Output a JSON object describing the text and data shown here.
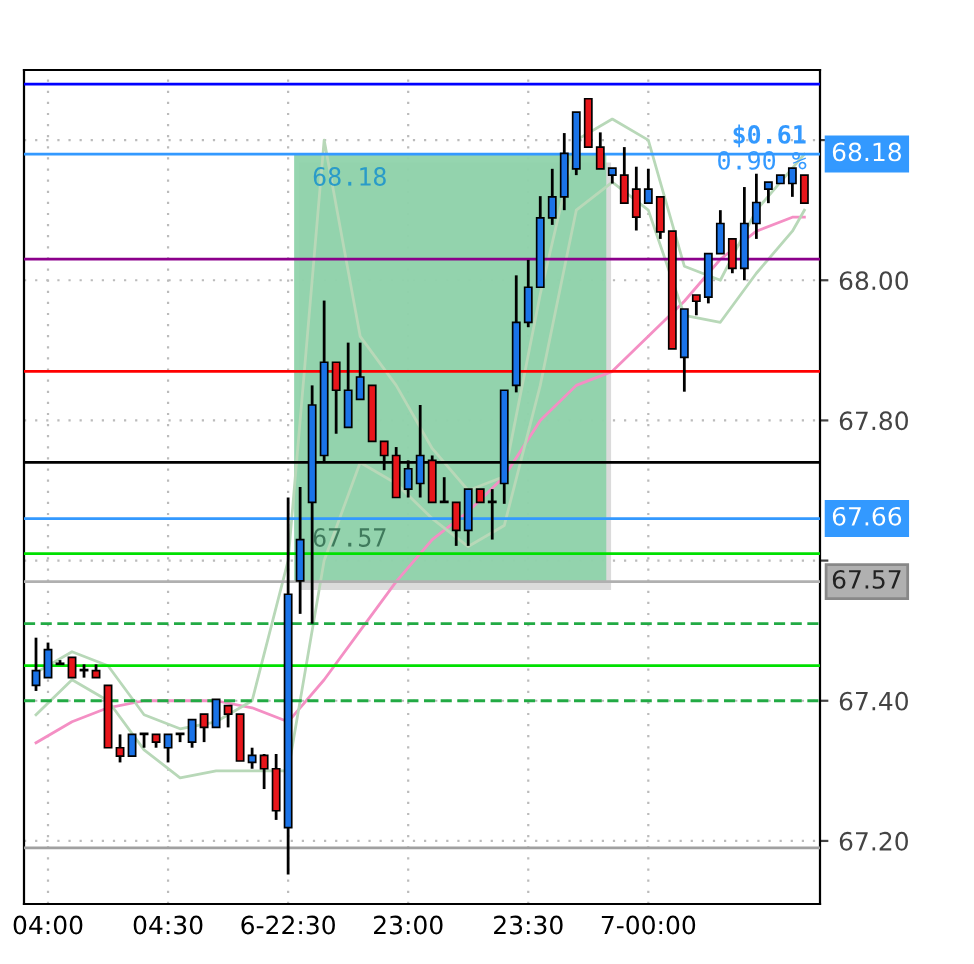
{
  "chart_data": {
    "type": "candlestick",
    "categories": [
      null,
      "04:00",
      null,
      null,
      null,
      null,
      null,
      null,
      null,
      null,
      null,
      "04:30",
      null,
      null,
      null,
      null,
      null,
      null,
      null,
      null,
      null,
      "6-22:30",
      null,
      null,
      null,
      null,
      null,
      null,
      null,
      null,
      null,
      "23:00",
      null,
      null,
      null,
      null,
      null,
      null,
      null,
      null,
      null,
      "23:30",
      null,
      null,
      null,
      null,
      null,
      null,
      null,
      null,
      null,
      "7-00:00",
      null,
      null,
      null,
      null,
      null,
      null,
      null,
      null,
      null,
      null,
      null,
      null,
      null
    ],
    "ohlc": [
      [
        67.422,
        67.49,
        67.414,
        67.443
      ],
      [
        67.433,
        67.483,
        67.433,
        67.473
      ],
      [
        67.452,
        67.458,
        67.452,
        67.452
      ],
      [
        67.462,
        67.462,
        67.433,
        67.433
      ],
      [
        67.443,
        67.452,
        67.433,
        67.443
      ],
      [
        67.443,
        67.452,
        67.433,
        67.433
      ],
      [
        67.422,
        67.422,
        67.333,
        67.333
      ],
      [
        67.333,
        67.352,
        67.312,
        67.321
      ],
      [
        67.321,
        67.352,
        67.321,
        67.352
      ],
      [
        67.352,
        67.352,
        67.333,
        67.352
      ],
      [
        67.352,
        67.352,
        67.333,
        67.341
      ],
      [
        67.333,
        67.352,
        67.312,
        67.352
      ],
      [
        67.352,
        67.352,
        67.341,
        67.352
      ],
      [
        67.341,
        67.373,
        67.333,
        67.373
      ],
      [
        67.381,
        67.381,
        67.341,
        67.362
      ],
      [
        67.362,
        67.402,
        67.362,
        67.402
      ],
      [
        67.393,
        67.393,
        67.362,
        67.381
      ],
      [
        67.381,
        67.381,
        67.314,
        67.314
      ],
      [
        67.312,
        67.333,
        67.303,
        67.322
      ],
      [
        67.322,
        67.324,
        67.274,
        67.303
      ],
      [
        67.303,
        67.324,
        67.23,
        67.243
      ],
      [
        67.219,
        67.69,
        67.152,
        67.552
      ],
      [
        67.571,
        67.705,
        67.524,
        67.63
      ],
      [
        67.683,
        67.85,
        67.51,
        67.822
      ],
      [
        67.75,
        67.971,
        67.74,
        67.883
      ],
      [
        67.883,
        67.883,
        67.781,
        67.843
      ],
      [
        67.79,
        67.911,
        67.79,
        67.843
      ],
      [
        67.83,
        67.911,
        67.83,
        67.862
      ],
      [
        67.85,
        67.85,
        67.77,
        67.77
      ],
      [
        67.77,
        67.77,
        67.729,
        67.75
      ],
      [
        67.75,
        67.762,
        67.69,
        67.69
      ],
      [
        67.702,
        67.743,
        67.69,
        67.731
      ],
      [
        67.71,
        67.822,
        67.69,
        67.75
      ],
      [
        67.743,
        67.75,
        67.683,
        67.683
      ],
      [
        67.683,
        67.719,
        67.683,
        67.683
      ],
      [
        67.683,
        67.683,
        67.621,
        67.643
      ],
      [
        67.643,
        67.702,
        67.621,
        67.702
      ],
      [
        67.702,
        67.702,
        67.683,
        67.683
      ],
      [
        67.683,
        67.702,
        67.63,
        67.683
      ],
      [
        67.71,
        67.843,
        67.681,
        67.843
      ],
      [
        67.85,
        68.007,
        67.84,
        67.94
      ],
      [
        67.94,
        68.029,
        67.933,
        67.99
      ],
      [
        67.99,
        68.12,
        67.99,
        68.089
      ],
      [
        68.089,
        68.159,
        68.079,
        68.119
      ],
      [
        68.119,
        68.21,
        68.1,
        68.181
      ],
      [
        68.159,
        68.24,
        68.15,
        68.24
      ],
      [
        68.259,
        68.259,
        68.19,
        68.19
      ],
      [
        68.19,
        68.211,
        68.159,
        68.159
      ],
      [
        68.15,
        68.16,
        68.138,
        68.16
      ],
      [
        68.15,
        68.19,
        68.11,
        68.11
      ],
      [
        68.13,
        68.162,
        68.071,
        68.09
      ],
      [
        68.11,
        68.159,
        68.11,
        68.13
      ],
      [
        68.119,
        68.119,
        68.059,
        68.069
      ],
      [
        68.07,
        68.07,
        67.902,
        67.902
      ],
      [
        67.89,
        67.959,
        67.841,
        67.959
      ],
      [
        67.979,
        67.979,
        67.95,
        67.97
      ],
      [
        67.976,
        68.038,
        67.967,
        68.038
      ],
      [
        68.038,
        68.1,
        68.038,
        68.081
      ],
      [
        68.059,
        68.059,
        68.01,
        68.017
      ],
      [
        68.017,
        68.133,
        68.0,
        68.081
      ],
      [
        68.081,
        68.152,
        68.059,
        68.111
      ],
      [
        68.13,
        68.14,
        68.11,
        68.14
      ],
      [
        68.138,
        68.15,
        68.138,
        68.15
      ],
      [
        68.138,
        68.16,
        68.119,
        68.16
      ],
      [
        68.15,
        68.15,
        68.11,
        68.11
      ]
    ],
    "colors": [
      "#1a73e8",
      "#1a73e8",
      "#000000",
      "#e8161b",
      "#000000",
      "#e8161b",
      "#e8161b",
      "#e8161b",
      "#1a73e8",
      "#000000",
      "#e8161b",
      "#1a73e8",
      "#000000",
      "#1a73e8",
      "#e8161b",
      "#1a73e8",
      "#e8161b",
      "#e8161b",
      "#1a73e8",
      "#e8161b",
      "#e8161b",
      "#1a73e8",
      "#1a73e8",
      "#1a73e8",
      "#1a73e8",
      "#e8161b",
      "#1a73e8",
      "#1a73e8",
      "#e8161b",
      "#e8161b",
      "#e8161b",
      "#1a73e8",
      "#1a73e8",
      "#e8161b",
      "#000000",
      "#e8161b",
      "#1a73e8",
      "#e8161b",
      "#000000",
      "#1a73e8",
      "#1a73e8",
      "#1a73e8",
      "#1a73e8",
      "#1a73e8",
      "#1a73e8",
      "#1a73e8",
      "#e8161b",
      "#e8161b",
      "#1a73e8",
      "#e8161b",
      "#e8161b",
      "#1a73e8",
      "#e8161b",
      "#e8161b",
      "#1a73e8",
      "#e8161b",
      "#1a73e8",
      "#1a73e8",
      "#e8161b",
      "#1a73e8",
      "#1a73e8",
      "#1a73e8",
      "#1a73e8",
      "#1a73e8",
      "#e8161b"
    ],
    "series": [
      {
        "type": "line",
        "color": "#f48fc4",
        "values": [
          67.34,
          null,
          null,
          67.37,
          null,
          null,
          67.39,
          null,
          null,
          67.4,
          null,
          null,
          67.4,
          null,
          null,
          67.4,
          null,
          null,
          67.39,
          null,
          null,
          67.37,
          null,
          null,
          67.43,
          null,
          null,
          67.5,
          null,
          null,
          67.57,
          null,
          null,
          67.63,
          null,
          null,
          67.67,
          null,
          null,
          67.72,
          null,
          null,
          67.8,
          null,
          null,
          67.85,
          null,
          null,
          67.87,
          null,
          null,
          67.92,
          null,
          null,
          67.97,
          null,
          null,
          68.03,
          null,
          null,
          68.07,
          null,
          null,
          68.09,
          68.09
        ]
      },
      {
        "type": "line",
        "color": "#b8d8b8",
        "values": [
          67.44,
          null,
          null,
          67.47,
          null,
          null,
          67.45,
          null,
          null,
          67.38,
          null,
          null,
          67.36,
          null,
          null,
          67.37,
          null,
          null,
          67.4,
          null,
          null,
          67.6,
          null,
          null,
          68.2,
          null,
          null,
          67.92,
          null,
          null,
          67.85,
          null,
          null,
          67.76,
          null,
          null,
          67.7,
          null,
          null,
          67.72,
          null,
          null,
          67.98,
          null,
          null,
          68.2,
          null,
          null,
          68.23,
          null,
          null,
          68.2,
          null,
          null,
          68.02,
          null,
          null,
          68.0,
          null,
          null,
          68.1,
          null,
          null,
          68.16,
          68.18
        ]
      },
      {
        "type": "line",
        "color": "#b8d8b8",
        "values": [
          67.38,
          null,
          null,
          67.43,
          null,
          null,
          67.4,
          null,
          null,
          67.33,
          null,
          null,
          67.29,
          null,
          null,
          67.3,
          null,
          null,
          67.3,
          null,
          null,
          67.3,
          null,
          null,
          67.6,
          null,
          null,
          67.74,
          null,
          null,
          67.71,
          null,
          null,
          67.66,
          null,
          null,
          67.62,
          null,
          null,
          67.65,
          null,
          null,
          67.85,
          null,
          null,
          68.1,
          null,
          null,
          68.14,
          null,
          null,
          68.1,
          null,
          null,
          67.95,
          null,
          null,
          67.94,
          null,
          null,
          68.01,
          null,
          null,
          68.07,
          68.1
        ]
      }
    ],
    "ylim": [
      67.11,
      68.3
    ],
    "yticks": [
      {
        "value": 67.2,
        "label": "67.20"
      },
      {
        "value": 67.4,
        "label": "67.40"
      },
      {
        "value": 67.6,
        "label": null
      },
      {
        "value": 67.8,
        "label": "67.80"
      },
      {
        "value": 68.0,
        "label": "68.00"
      },
      {
        "value": 68.2,
        "label": null
      }
    ],
    "grid": true,
    "ref_lines": [
      {
        "axis": "y",
        "value": 68.28,
        "label": null,
        "color": "#0000ff"
      },
      {
        "axis": "y",
        "value": 68.18,
        "label": "68.18",
        "color": "#3399ff"
      },
      {
        "axis": "y",
        "value": 68.03,
        "label": null,
        "color": "#8b008b"
      },
      {
        "axis": "y",
        "value": 67.87,
        "label": null,
        "color": "#ff0000"
      },
      {
        "axis": "y",
        "value": 67.74,
        "label": null,
        "color": "#000000"
      },
      {
        "axis": "y",
        "value": 67.66,
        "label": "67.66",
        "color": "#3399ff"
      },
      {
        "axis": "y",
        "value": 67.61,
        "label": null,
        "color": "#00e000"
      },
      {
        "axis": "y",
        "value": 67.57,
        "label": "67.57",
        "color": "#b0b0b0"
      },
      {
        "axis": "y",
        "value": 67.51,
        "label": null,
        "color": "#22aa44",
        "line_style": "dashed"
      },
      {
        "axis": "y",
        "value": 67.45,
        "label": null,
        "color": "#00e000"
      },
      {
        "axis": "y",
        "value": 67.4,
        "label": null,
        "color": "#22aa44",
        "line_style": "dashed"
      },
      {
        "axis": "y",
        "value": 67.19,
        "label": null,
        "color": "#a0a0a0"
      }
    ],
    "bands": [
      {
        "axis": "y",
        "from": 67.57,
        "to": 68.18,
        "color": "#8fd3ab"
      }
    ],
    "annotations": [
      {
        "text": "68.18",
        "y": 68.18
      },
      {
        "text": "67.57",
        "y": 67.57
      },
      {
        "text": "$0.61",
        "y": 68.18
      },
      {
        "text": "0.90 %",
        "y": 68.18
      }
    ]
  }
}
